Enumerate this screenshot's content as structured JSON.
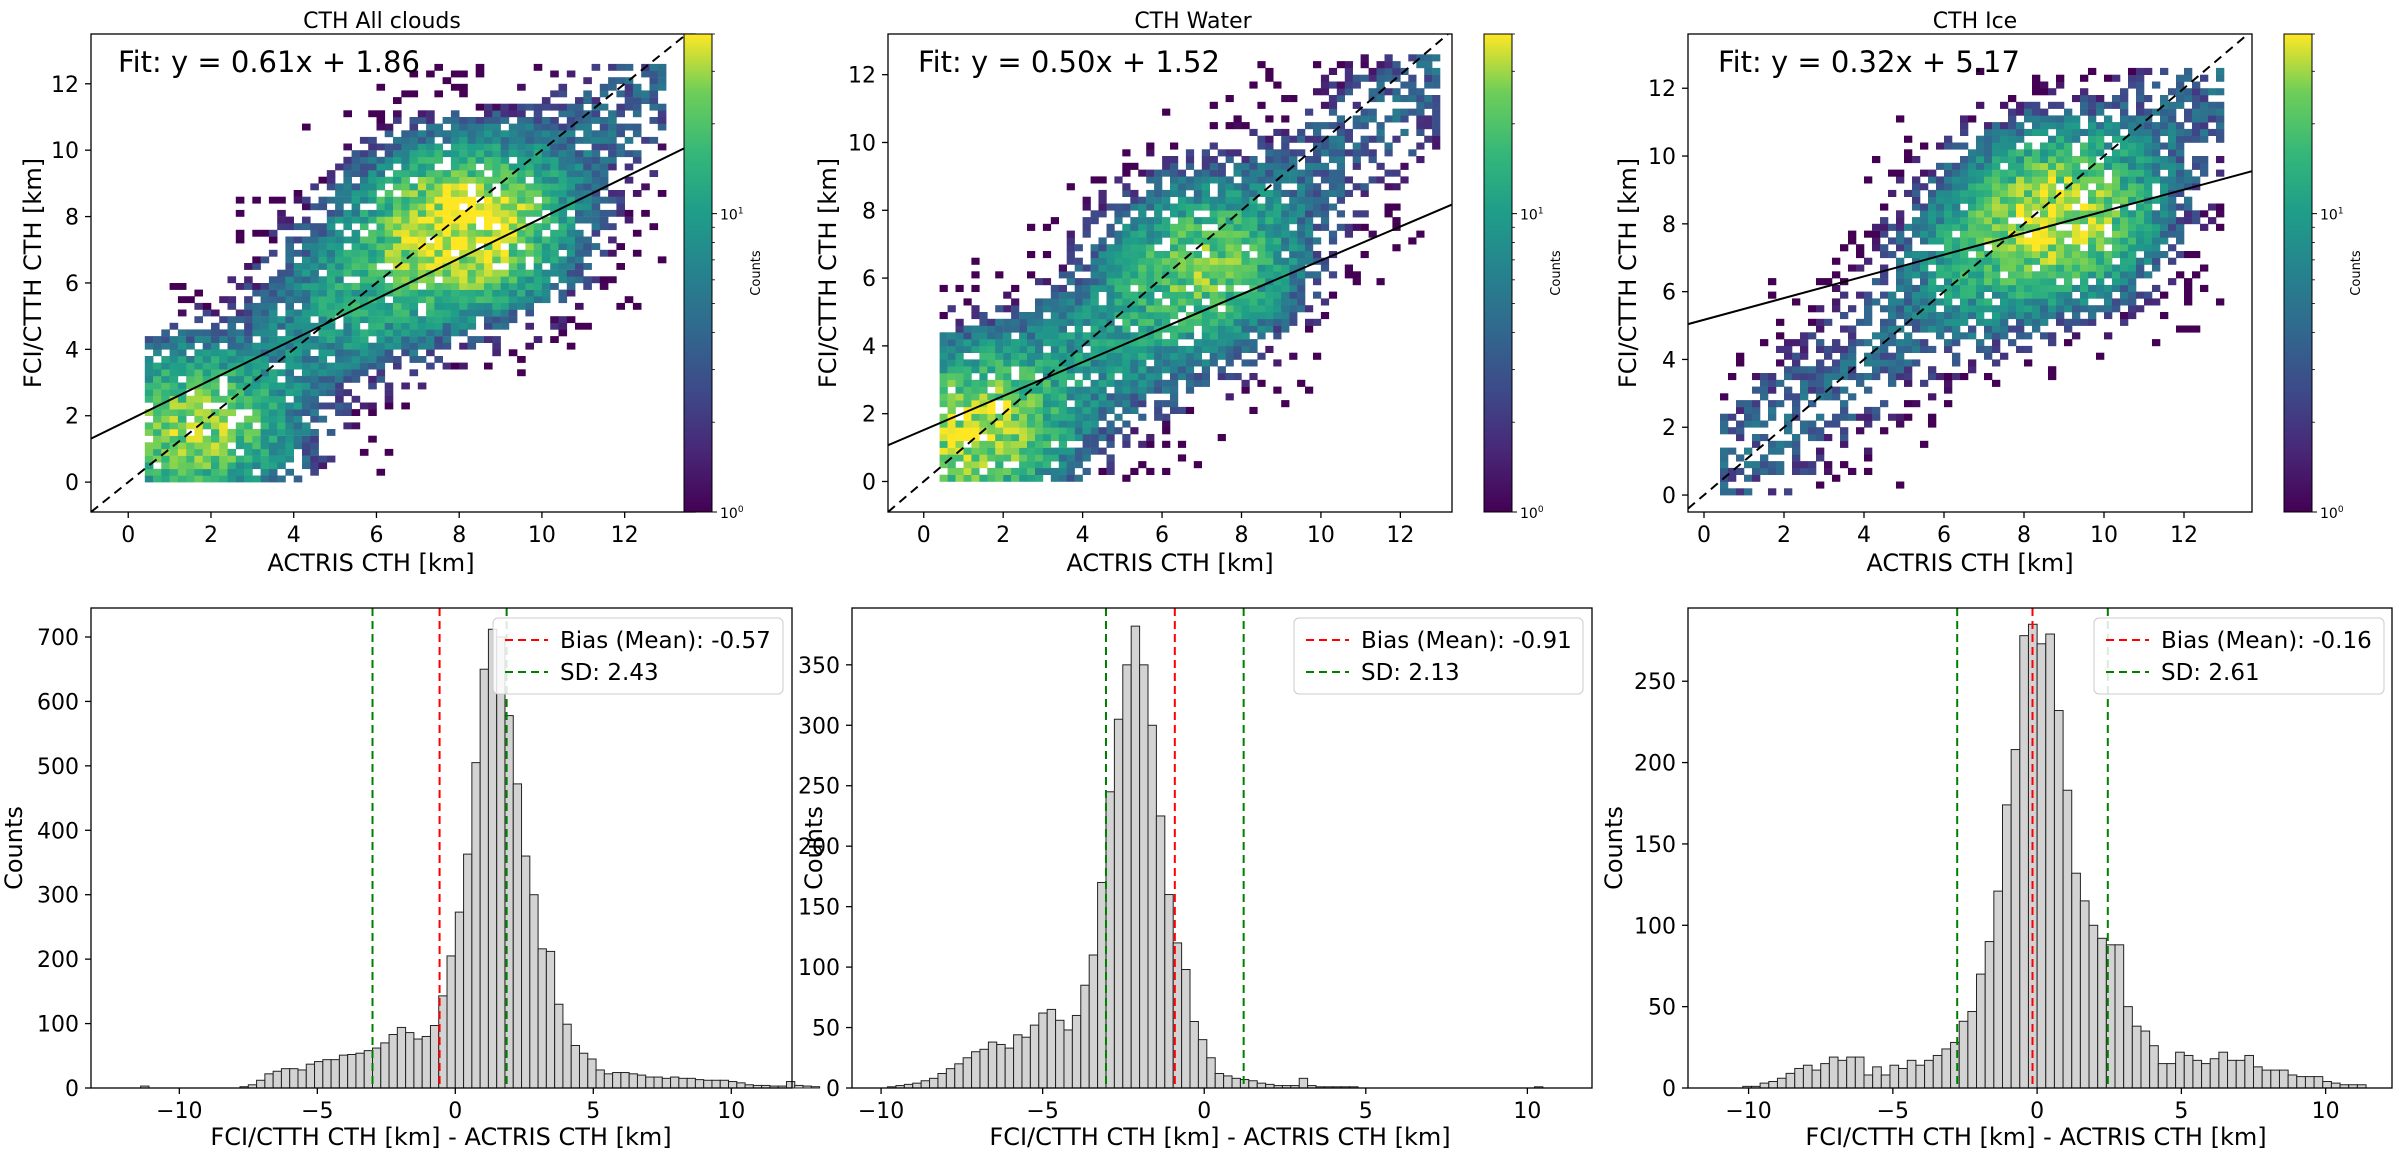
{
  "chart_data": [
    {
      "type": "heatmap",
      "title": "CTH All clouds",
      "xlabel": "ACTRIS CTH [km]",
      "ylabel": "FCI/CTTH CTH [km]",
      "xlim": [
        -0.9,
        13.7
      ],
      "ylim": [
        -0.9,
        13.5
      ],
      "xticks": [
        0,
        2,
        4,
        6,
        8,
        10,
        12
      ],
      "yticks": [
        0,
        2,
        4,
        6,
        8,
        10,
        12
      ],
      "fit_label": "Fit: y = 0.61x + 1.86",
      "fit": {
        "slope": 0.61,
        "intercept": 1.86
      },
      "one_to_one_line": true,
      "colorbar": {
        "label": "Counts",
        "scale": "log",
        "ticks": [
          "10",
          "10"
        ],
        "tick_exponents": [
          "0",
          "1"
        ],
        "tick_values": [
          1,
          10
        ],
        "max": 40
      },
      "density_clusters": [
        {
          "x": 1.5,
          "y": 1.5,
          "peak": 25
        },
        {
          "x": 8.0,
          "y": 7.6,
          "peak": 40
        },
        {
          "x": 5.5,
          "y": 5.5,
          "peak": 8
        }
      ]
    },
    {
      "type": "heatmap",
      "title": "CTH Water",
      "xlabel": "ACTRIS CTH [km]",
      "ylabel": "FCI/CTTH CTH [km]",
      "xlim": [
        -0.9,
        13.3
      ],
      "ylim": [
        -0.9,
        13.2
      ],
      "xticks": [
        0,
        2,
        4,
        6,
        8,
        10,
        12
      ],
      "yticks": [
        0,
        2,
        4,
        6,
        8,
        10,
        12
      ],
      "fit_label": "Fit: y = 0.50x + 1.52",
      "fit": {
        "slope": 0.5,
        "intercept": 1.52
      },
      "one_to_one_line": true,
      "colorbar": {
        "label": "Counts",
        "scale": "log",
        "ticks": [
          "10",
          "10"
        ],
        "tick_exponents": [
          "0",
          "1"
        ],
        "tick_values": [
          1,
          10
        ],
        "max": 40
      },
      "density_clusters": [
        {
          "x": 1.2,
          "y": 1.5,
          "peak": 30
        },
        {
          "x": 7.0,
          "y": 6.3,
          "peak": 20
        },
        {
          "x": 5.0,
          "y": 3.8,
          "peak": 6
        }
      ]
    },
    {
      "type": "heatmap",
      "title": "CTH Ice",
      "xlabel": "ACTRIS CTH [km]",
      "ylabel": "FCI/CTTH CTH [km]",
      "xlim": [
        -0.4,
        13.7
      ],
      "ylim": [
        -0.5,
        13.6
      ],
      "xticks": [
        0,
        2,
        4,
        6,
        8,
        10,
        12
      ],
      "yticks": [
        0,
        2,
        4,
        6,
        8,
        10,
        12
      ],
      "fit_label": "Fit: y = 0.32x + 5.17",
      "fit": {
        "slope": 0.32,
        "intercept": 5.17
      },
      "one_to_one_line": true,
      "colorbar": {
        "label": "Counts",
        "scale": "log",
        "ticks": [
          "10",
          "10"
        ],
        "tick_exponents": [
          "0",
          "1"
        ],
        "tick_values": [
          1,
          10
        ],
        "max": 40
      },
      "density_clusters": [
        {
          "x": 8.8,
          "y": 8.2,
          "peak": 30
        },
        {
          "x": 7.0,
          "y": 7.0,
          "peak": 8
        }
      ]
    },
    {
      "type": "bar",
      "xlabel": "FCI/CTTH CTH [km] - ACTRIS CTH [km]",
      "ylabel": "Counts",
      "xlim": [
        -13.2,
        12.2
      ],
      "ylim": [
        0,
        745
      ],
      "xticks": [
        -10,
        -5,
        0,
        5,
        10
      ],
      "yticks": [
        0,
        100,
        200,
        300,
        400,
        500,
        600,
        700
      ],
      "bin_start": -11.4,
      "bin_width": 0.3,
      "values": [
        3,
        0,
        0,
        0,
        0,
        0,
        0,
        0,
        0,
        0,
        0,
        0,
        2,
        5,
        12,
        22,
        26,
        30,
        30,
        28,
        37,
        41,
        44,
        44,
        51,
        52,
        54,
        58,
        62,
        70,
        83,
        94,
        86,
        76,
        80,
        97,
        143,
        205,
        273,
        363,
        505,
        650,
        712,
        700,
        578,
        472,
        360,
        300,
        216,
        212,
        130,
        99,
        66,
        54,
        45,
        28,
        22,
        24,
        24,
        22,
        20,
        17,
        17,
        15,
        17,
        15,
        15,
        13,
        12,
        12,
        12,
        10,
        8,
        5,
        4,
        4,
        3,
        3,
        10,
        4,
        3,
        2
      ],
      "bias_label": "Bias (Mean): -0.57",
      "bias": -0.57,
      "sd_label": "SD: 2.43",
      "sd": 2.43,
      "legend_loc": "upper-right"
    },
    {
      "type": "bar",
      "xlabel": "FCI/CTTH CTH [km] - ACTRIS CTH [km]",
      "ylabel": "Counts",
      "xlim": [
        -10.9,
        12.0
      ],
      "ylim": [
        0,
        397
      ],
      "xticks": [
        -10,
        -5,
        0,
        5,
        10
      ],
      "yticks": [
        0,
        50,
        100,
        150,
        200,
        250,
        300,
        350
      ],
      "bin_start": -9.8,
      "bin_width": 0.26,
      "values": [
        1,
        2,
        3,
        4,
        6,
        8,
        12,
        16,
        20,
        25,
        30,
        32,
        38,
        36,
        33,
        44,
        42,
        52,
        62,
        65,
        56,
        48,
        60,
        85,
        110,
        170,
        245,
        305,
        350,
        382,
        350,
        300,
        225,
        160,
        120,
        98,
        55,
        40,
        25,
        12,
        10,
        8,
        7,
        6,
        4,
        3,
        2,
        2,
        2,
        8,
        2,
        1,
        1,
        1,
        1,
        1,
        0,
        0,
        0,
        0,
        0,
        0,
        0,
        0,
        0,
        0,
        0,
        0,
        0,
        0,
        0,
        0,
        0,
        0,
        0,
        0,
        0,
        1,
        0,
        0,
        0,
        0
      ],
      "bias_label": "Bias (Mean): -0.91",
      "bias": -0.91,
      "sd_label": "SD: 2.13",
      "sd": 2.13,
      "legend_loc": "upper-right"
    },
    {
      "type": "bar",
      "xlabel": "FCI/CTTH CTH [km] - ACTRIS CTH [km]",
      "ylabel": "Counts",
      "xlim": [
        -12.1,
        12.3
      ],
      "ylim": [
        0,
        295
      ],
      "xticks": [
        -10,
        -5,
        0,
        5,
        10
      ],
      "yticks": [
        0,
        50,
        100,
        150,
        200,
        250
      ],
      "bin_start": -10.2,
      "bin_width": 0.3,
      "values": [
        1,
        1,
        3,
        4,
        6,
        9,
        12,
        14,
        11,
        15,
        19,
        17,
        19,
        19,
        8,
        13,
        8,
        14,
        12,
        17,
        14,
        17,
        20,
        24,
        28,
        41,
        47,
        70,
        90,
        121,
        174,
        208,
        278,
        285,
        273,
        279,
        232,
        183,
        132,
        115,
        100,
        92,
        88,
        88,
        50,
        38,
        35,
        26,
        15,
        15,
        22,
        20,
        17,
        15,
        18,
        22,
        17,
        17,
        20,
        13,
        11,
        11,
        11,
        8,
        7,
        7,
        7,
        4,
        3,
        2,
        2,
        2
      ],
      "bias_label": "Bias (Mean): -0.16",
      "bias": -0.16,
      "sd_label": "SD: 2.61",
      "sd": 2.61,
      "legend_loc": "upper-right"
    }
  ]
}
